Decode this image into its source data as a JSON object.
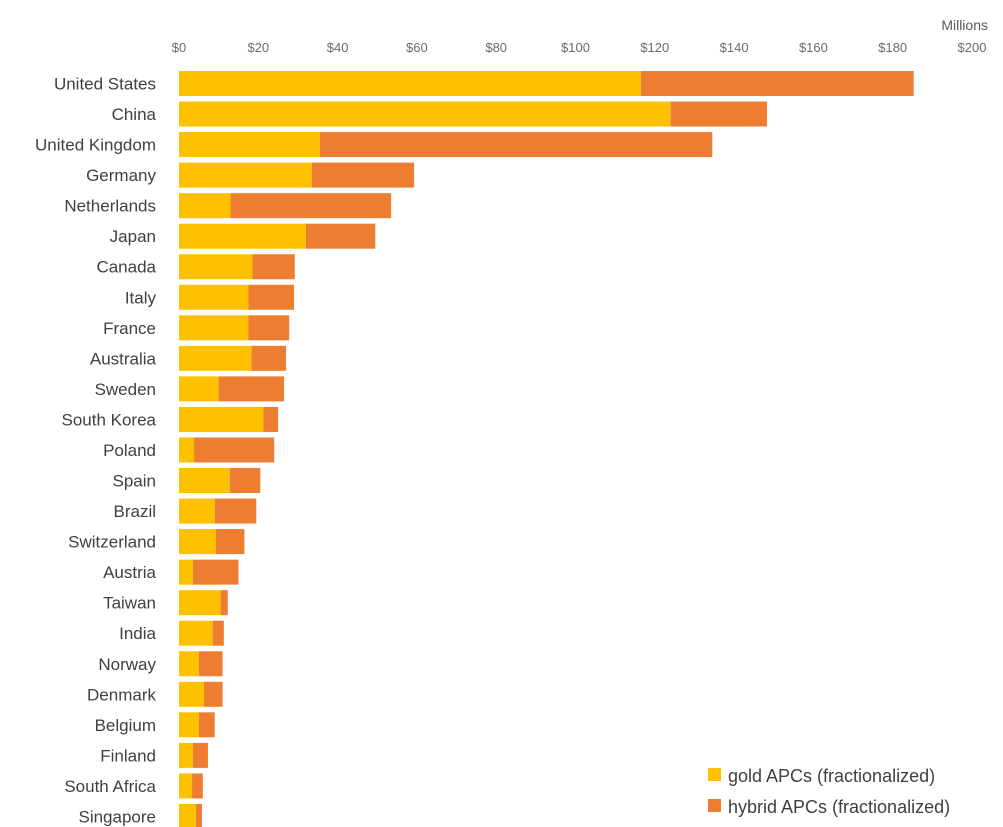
{
  "chart_data": {
    "type": "bar",
    "orientation": "horizontal",
    "stacked": true,
    "unit_label": "Millions",
    "x_tick_labels": [
      "$0",
      "$20",
      "$40",
      "$60",
      "$80",
      "$100",
      "$120",
      "$140",
      "$160",
      "$180",
      "$200"
    ],
    "xlim": [
      0,
      200
    ],
    "grid": false,
    "legend_position": "bottom-right",
    "categories": [
      "United States",
      "China",
      "United Kingdom",
      "Germany",
      "Netherlands",
      "Japan",
      "Canada",
      "Italy",
      "France",
      "Australia",
      "Sweden",
      "South Korea",
      "Poland",
      "Spain",
      "Brazil",
      "Switzerland",
      "Austria",
      "Taiwan",
      "India",
      "Norway",
      "Denmark",
      "Belgium",
      "Finland",
      "South Africa",
      "Singapore"
    ],
    "series": [
      {
        "name": "gold APCs (fractionalized)",
        "color": "#FFC000",
        "values": [
          116.5,
          124,
          35.5,
          33.5,
          13,
          32,
          18.5,
          17.5,
          17.5,
          18.3,
          10,
          21.3,
          3.8,
          12.8,
          9,
          9.3,
          3.5,
          10.5,
          8.5,
          5,
          6.3,
          5,
          3.5,
          3.3,
          4.3
        ]
      },
      {
        "name": "hybrid APCs (fractionalized)",
        "color": "#ED7D31",
        "values": [
          68.8,
          24.3,
          99,
          25.8,
          40.5,
          17.5,
          10.7,
          11.5,
          10.3,
          8.7,
          16.5,
          3.7,
          20.2,
          7.7,
          10.5,
          7.2,
          11.5,
          1.8,
          2.8,
          6,
          4.7,
          4,
          3.8,
          2.7,
          1.5
        ]
      }
    ]
  }
}
